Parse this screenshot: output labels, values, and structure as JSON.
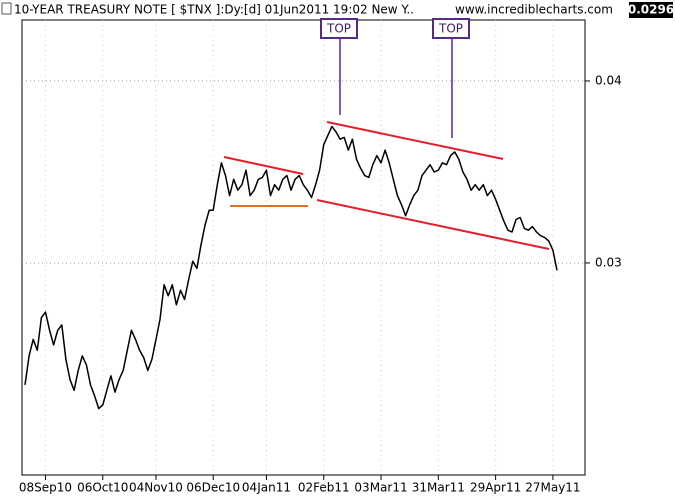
{
  "chart_data": {
    "type": "line",
    "title": "10-YEAR TREASURY NOTE [ $TNX ]:Dy:[d]  01Jun2011 19:02 New Y..",
    "source": "www.incrediblecharts.com",
    "last_price": 0.0296,
    "annotations": [
      "TOP",
      "TOP"
    ],
    "color": "#000000",
    "values": [
      0.0233,
      0.0249,
      0.0258,
      0.0252,
      0.027,
      0.0273,
      0.0263,
      0.0255,
      0.0263,
      0.0266,
      0.0247,
      0.0236,
      0.023,
      0.0241,
      0.0249,
      0.0244,
      0.0233,
      0.0227,
      0.022,
      0.0222,
      0.023,
      0.0238,
      0.0229,
      0.0236,
      0.0241,
      0.0252,
      0.0263,
      0.0258,
      0.0252,
      0.0248,
      0.0241,
      0.0247,
      0.0258,
      0.0269,
      0.0288,
      0.0282,
      0.0288,
      0.0277,
      0.0285,
      0.028,
      0.0291,
      0.0301,
      0.0297,
      0.031,
      0.0321,
      0.0329,
      0.0329,
      0.0343,
      0.0355,
      0.0348,
      0.0337,
      0.0346,
      0.034,
      0.0343,
      0.0351,
      0.0337,
      0.034,
      0.0346,
      0.0347,
      0.0351,
      0.0337,
      0.0343,
      0.034,
      0.0346,
      0.0348,
      0.034,
      0.0346,
      0.0348,
      0.0343,
      0.034,
      0.0336,
      0.0343,
      0.0351,
      0.0365,
      0.037,
      0.0375,
      0.0372,
      0.0368,
      0.0369,
      0.0362,
      0.0368,
      0.0357,
      0.0352,
      0.0348,
      0.0347,
      0.0354,
      0.0359,
      0.0355,
      0.0362,
      0.0355,
      0.0346,
      0.0337,
      0.0332,
      0.0326,
      0.0332,
      0.0337,
      0.034,
      0.0348,
      0.0351,
      0.0354,
      0.035,
      0.0351,
      0.0355,
      0.0354,
      0.0359,
      0.0361,
      0.0357,
      0.035,
      0.0346,
      0.034,
      0.0343,
      0.034,
      0.0343,
      0.0337,
      0.034,
      0.0335,
      0.0329,
      0.0323,
      0.0318,
      0.0317,
      0.0324,
      0.0325,
      0.0319,
      0.0318,
      0.032,
      0.0317,
      0.0315,
      0.0314,
      0.0312,
      0.0307,
      0.0296
    ],
    "xticks": [
      {
        "value": 5,
        "label": "08Sep10"
      },
      {
        "value": 19,
        "label": "06Oct10"
      },
      {
        "value": 32,
        "label": "04Nov10"
      },
      {
        "value": 46,
        "label": "06Dec10"
      },
      {
        "value": 59,
        "label": "04Jan11"
      },
      {
        "value": 73,
        "label": "02Feb11"
      },
      {
        "value": 87,
        "label": "03Mar11"
      },
      {
        "value": 101,
        "label": "31Mar11"
      },
      {
        "value": 115,
        "label": "29Apr11"
      },
      {
        "value": 129,
        "label": "27May11"
      }
    ],
    "ylim": [
      0.01835,
      0.04335
    ],
    "yticks": [
      0.03,
      0.04
    ],
    "grid": true
  }
}
